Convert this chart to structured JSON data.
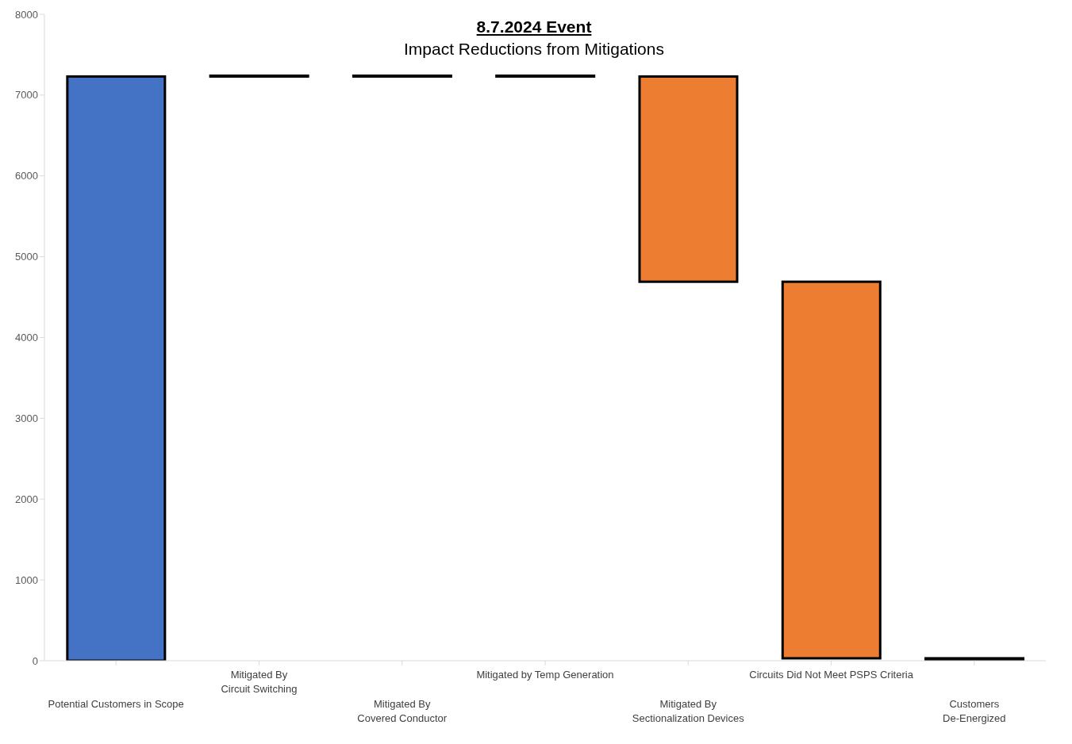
{
  "chart_data": {
    "type": "bar",
    "title": "8.7.2024 Event",
    "subtitle": "Impact Reductions from Mitigations",
    "categories": [
      "Potential Customers in Scope",
      "Mitigated By\nCircuit Switching",
      "Mitigated By\nCovered Conductor",
      "Mitigated by Temp Generation",
      "Mitigated By\nSectionalization Devices",
      "Circuits Did Not Meet PSPS Criteria",
      "Customers\nDe-Energized"
    ],
    "values": [
      7230,
      0,
      0,
      0,
      -2540,
      -4660,
      30
    ],
    "base": [
      0,
      7230,
      7230,
      7230,
      7230,
      4690,
      0
    ],
    "colors": [
      "#4472c4",
      "#ffffff",
      "#ffffff",
      "#ffffff",
      "#ed7d31",
      "#ed7d31",
      "#4472c4"
    ],
    "ylim": [
      0,
      8000
    ],
    "yticks": [
      0,
      1000,
      2000,
      3000,
      4000,
      5000,
      6000,
      7000,
      8000
    ]
  }
}
